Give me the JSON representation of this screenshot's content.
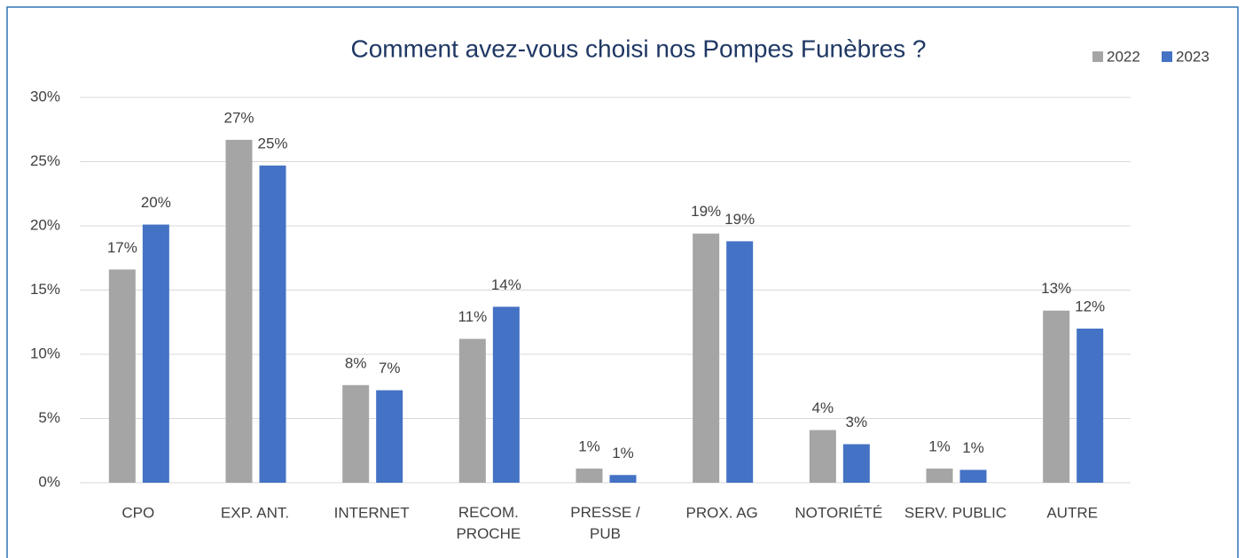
{
  "chart_data": {
    "type": "bar",
    "title": "Comment avez-vous choisi nos Pompes Funèbres ?",
    "categories": [
      "CPO",
      "EXP. ANT.",
      "INTERNET",
      "RECOM.\nPROCHE",
      "PRESSE /\nPUB",
      "PROX. AG",
      "NOTORIÉTÉ",
      "SERV. PUBLIC",
      "AUTRE"
    ],
    "series": [
      {
        "name": "2022",
        "color": "#a5a5a5",
        "values": [
          16.6,
          26.7,
          7.6,
          11.2,
          1.1,
          19.4,
          4.1,
          1.1,
          13.4
        ],
        "value_labels": [
          "17%",
          "27%",
          "8%",
          "11%",
          "1%",
          "19%",
          "4%",
          "1%",
          "13%"
        ]
      },
      {
        "name": "2023",
        "color": "#4472c4",
        "values": [
          20.1,
          24.7,
          7.2,
          13.7,
          0.6,
          18.8,
          3.0,
          1.0,
          12.0
        ],
        "value_labels": [
          "20%",
          "25%",
          "7%",
          "14%",
          "1%",
          "19%",
          "3%",
          "1%",
          "12%"
        ]
      }
    ],
    "ylim": [
      0,
      30
    ],
    "yticks": [
      {
        "value": 0,
        "label": "0%"
      },
      {
        "value": 5,
        "label": "5%"
      },
      {
        "value": 10,
        "label": "10%"
      },
      {
        "value": 15,
        "label": "15%"
      },
      {
        "value": 20,
        "label": "20%"
      },
      {
        "value": 25,
        "label": "25%"
      },
      {
        "value": 30,
        "label": "30%"
      }
    ],
    "grid": true,
    "legend": "top-right"
  }
}
